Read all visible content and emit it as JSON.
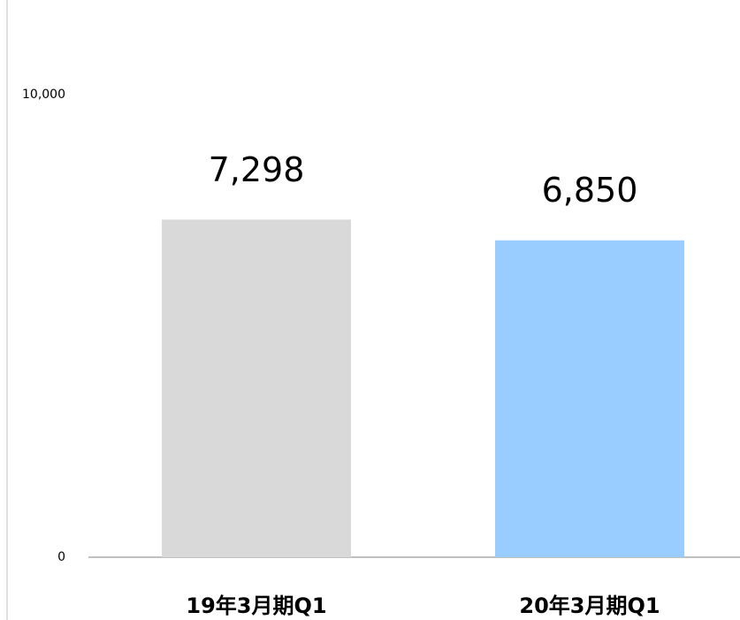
{
  "chart_data": {
    "type": "bar",
    "categories": [
      "19年3月期Q1",
      "20年3月期Q1"
    ],
    "values": [
      7298,
      6850
    ],
    "value_labels": [
      "7,298",
      "6,850"
    ],
    "colors": [
      "#d9d9d9",
      "#99ccff"
    ],
    "ylim": [
      0,
      10000
    ],
    "yticks": [
      0,
      {
        "value": 10000,
        "label": "10,000"
      }
    ],
    "grid": false
  }
}
